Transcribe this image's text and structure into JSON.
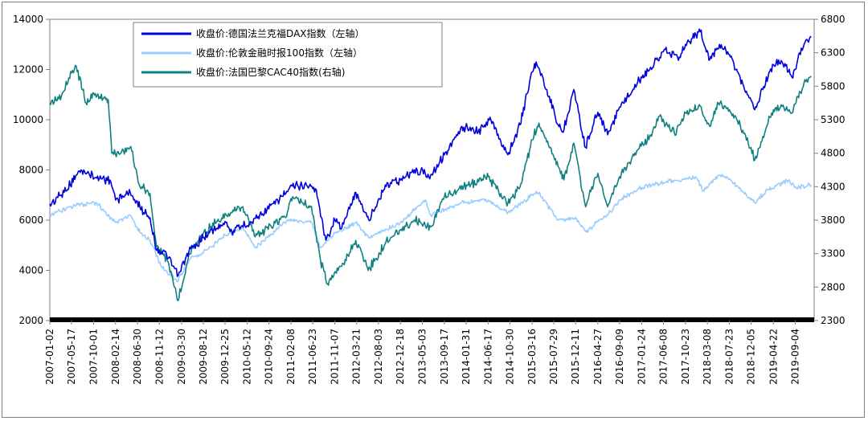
{
  "chart_data": {
    "type": "line",
    "title": "",
    "left_axis": {
      "ylim": [
        2000,
        14000
      ],
      "ticks": [
        2000,
        4000,
        6000,
        8000,
        10000,
        12000,
        14000
      ]
    },
    "right_axis": {
      "ylim": [
        2300,
        6800
      ],
      "ticks": [
        2300,
        2800,
        3300,
        3800,
        4300,
        4800,
        5300,
        5800,
        6300,
        6800
      ]
    },
    "x_tick_labels": [
      "2007-01-02",
      "2007-05-17",
      "2007-10-01",
      "2008-02-14",
      "2008-06-30",
      "2008-11-12",
      "2009-03-30",
      "2009-08-12",
      "2009-12-25",
      "2010-05-12",
      "2010-09-24",
      "2011-02-08",
      "2011-06-23",
      "2011-11-07",
      "2012-03-21",
      "2012-08-03",
      "2012-12-18",
      "2013-05-03",
      "2013-09-17",
      "2014-01-31",
      "2014-06-17",
      "2014-10-30",
      "2015-03-16",
      "2015-07-29",
      "2015-12-11",
      "2016-04-27",
      "2016-09-09",
      "2017-01-24",
      "2017-06-08",
      "2017-10-23",
      "2018-03-08",
      "2018-07-23",
      "2018-12-05",
      "2019-04-22",
      "2019-09-04"
    ],
    "legend": {
      "placement": "top-left"
    },
    "series": [
      {
        "name": "收盘价:德国法兰克福DAX指数（左轴）",
        "axis": "left",
        "color": "#0000dd",
        "x": [
          "2007-01-02",
          "2007-03-15",
          "2007-07-15",
          "2007-10-15",
          "2008-01-10",
          "2008-02-14",
          "2008-05-15",
          "2008-07-15",
          "2008-09-15",
          "2008-10-25",
          "2008-12-15",
          "2009-03-09",
          "2009-05-15",
          "2009-08-12",
          "2009-12-25",
          "2010-02-05",
          "2010-05-25",
          "2010-08-15",
          "2010-12-15",
          "2011-02-15",
          "2011-05-15",
          "2011-07-15",
          "2011-09-12",
          "2011-11-07",
          "2011-12-20",
          "2012-03-16",
          "2012-06-04",
          "2012-09-15",
          "2012-12-18",
          "2013-03-15",
          "2013-06-24",
          "2013-09-17",
          "2014-01-15",
          "2014-04-15",
          "2014-07-03",
          "2014-10-16",
          "2014-12-31",
          "2015-03-16",
          "2015-04-10",
          "2015-06-15",
          "2015-08-24",
          "2015-09-25",
          "2015-11-30",
          "2016-02-11",
          "2016-04-27",
          "2016-06-27",
          "2016-09-09",
          "2016-12-30",
          "2017-03-15",
          "2017-06-19",
          "2017-09-15",
          "2017-10-23",
          "2018-01-23",
          "2018-03-23",
          "2018-05-22",
          "2018-07-23",
          "2018-10-25",
          "2018-12-27",
          "2019-02-15",
          "2019-04-22",
          "2019-06-15",
          "2019-08-15",
          "2019-09-20",
          "2019-11-15",
          "2019-12-13"
        ],
        "values": [
          6650,
          7000,
          8000,
          7700,
          7600,
          6800,
          7100,
          6500,
          6100,
          4800,
          4750,
          3800,
          4750,
          5300,
          5950,
          5550,
          5900,
          6250,
          6950,
          7350,
          7400,
          7200,
          5200,
          6000,
          5700,
          7100,
          6000,
          7400,
          7600,
          8000,
          7800,
          8600,
          9700,
          9500,
          10000,
          8600,
          9800,
          11900,
          12300,
          11200,
          9800,
          9500,
          11200,
          8900,
          10300,
          9400,
          10500,
          11500,
          12000,
          12800,
          12500,
          13000,
          13500,
          12400,
          13000,
          12600,
          11200,
          10400,
          11200,
          12200,
          12300,
          11700,
          12400,
          13200,
          13300
        ]
      },
      {
        "name": "收盘价:伦敦金融时报100指数（左轴）",
        "axis": "left",
        "color": "#99ccff",
        "x": [
          "2007-01-02",
          "2007-06-15",
          "2007-10-15",
          "2008-02-14",
          "2008-05-15",
          "2008-07-15",
          "2008-09-15",
          "2008-11-20",
          "2009-03-03",
          "2009-05-15",
          "2009-08-12",
          "2009-12-25",
          "2010-04-15",
          "2010-07-01",
          "2010-12-31",
          "2011-02-15",
          "2011-06-15",
          "2011-08-10",
          "2011-11-07",
          "2012-03-16",
          "2012-06-04",
          "2012-12-18",
          "2013-05-22",
          "2013-06-24",
          "2013-12-31",
          "2014-06-17",
          "2014-10-16",
          "2015-03-16",
          "2015-04-27",
          "2015-08-24",
          "2015-12-11",
          "2016-02-11",
          "2016-06-27",
          "2016-09-09",
          "2017-01-24",
          "2017-06-08",
          "2017-12-29",
          "2018-02-09",
          "2018-05-22",
          "2018-07-23",
          "2018-12-24",
          "2019-03-15",
          "2019-07-25",
          "2019-09-04",
          "2019-12-13"
        ],
        "values": [
          6200,
          6600,
          6700,
          5900,
          6200,
          5500,
          5200,
          4200,
          3550,
          4400,
          4700,
          5400,
          5700,
          4900,
          5900,
          6000,
          5900,
          4900,
          5500,
          5900,
          5300,
          5900,
          6800,
          6200,
          6700,
          6800,
          6300,
          7000,
          7100,
          6000,
          6100,
          5550,
          6200,
          6800,
          7300,
          7500,
          7700,
          7150,
          7800,
          7650,
          6700,
          7200,
          7600,
          7300,
          7400
        ]
      },
      {
        "name": "收盘价:法国巴黎CAC40指数(右轴)",
        "axis": "right",
        "color": "#108080",
        "x": [
          "2007-01-02",
          "2007-03-15",
          "2007-05-17",
          "2007-06-15",
          "2007-08-15",
          "2007-10-01",
          "2007-12-31",
          "2008-01-22",
          "2008-03-17",
          "2008-05-19",
          "2008-07-15",
          "2008-09-15",
          "2008-10-25",
          "2008-12-31",
          "2009-03-09",
          "2009-05-15",
          "2009-08-12",
          "2009-12-25",
          "2010-04-15",
          "2010-06-30",
          "2010-12-31",
          "2011-02-18",
          "2011-06-15",
          "2011-08-10",
          "2011-09-22",
          "2011-12-30",
          "2012-03-16",
          "2012-06-01",
          "2012-09-15",
          "2012-12-18",
          "2013-03-15",
          "2013-06-24",
          "2013-09-17",
          "2014-01-15",
          "2014-06-17",
          "2014-10-16",
          "2014-12-31",
          "2015-03-16",
          "2015-04-27",
          "2015-08-24",
          "2015-09-29",
          "2015-11-30",
          "2016-02-11",
          "2016-04-27",
          "2016-06-27",
          "2016-09-09",
          "2016-12-30",
          "2017-03-15",
          "2017-05-15",
          "2017-08-15",
          "2017-10-23",
          "2018-01-23",
          "2018-03-23",
          "2018-05-15",
          "2018-07-23",
          "2018-10-25",
          "2018-12-27",
          "2019-02-15",
          "2019-04-22",
          "2019-06-15",
          "2019-08-15",
          "2019-09-20",
          "2019-11-15",
          "2019-12-13"
        ],
        "values": [
          5550,
          5650,
          6000,
          6100,
          5550,
          5700,
          5600,
          4800,
          4800,
          4900,
          4300,
          4200,
          3400,
          3200,
          2600,
          3300,
          3600,
          3900,
          4000,
          3550,
          3850,
          4150,
          4000,
          3200,
          2850,
          3150,
          3500,
          3050,
          3450,
          3650,
          3800,
          3700,
          4150,
          4300,
          4450,
          4050,
          4300,
          5000,
          5250,
          4600,
          4400,
          4950,
          4000,
          4500,
          4000,
          4450,
          4850,
          5050,
          5350,
          5100,
          5400,
          5500,
          5200,
          5550,
          5450,
          5100,
          4700,
          5050,
          5450,
          5500,
          5400,
          5650,
          5900,
          5950
        ]
      }
    ]
  }
}
